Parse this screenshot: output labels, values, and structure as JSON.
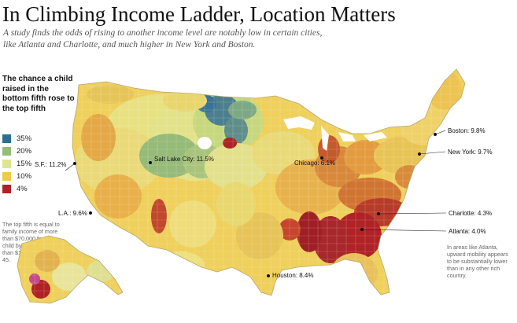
{
  "title": "In Climbing Income Ladder, Location Matters",
  "subtitle": "A study finds the odds of rising to another income level are notably low in certain cities, like Atlanta and Charlotte, and much higher in New York and Boston.",
  "legend": {
    "title": "The chance a child raised in the bottom fifth rose to the top fifth",
    "items": [
      {
        "label": "35%",
        "color": "#2f6e93"
      },
      {
        "label": "20%",
        "color": "#97bd76"
      },
      {
        "label": "15%",
        "color": "#dfe690"
      },
      {
        "label": "10%",
        "color": "#f1c94a"
      },
      {
        "label": "4%",
        "color": "#b02226"
      }
    ]
  },
  "footnote": "The top fifth is equal to family income of more than $70,000 for the child by age 30, or more than $100,000 by age 45.",
  "side_note": "In areas like Atlanta, upward mobility appears to be substantially lower than in any other rich country.",
  "cities": [
    {
      "label": "S.F.: 11.2%"
    },
    {
      "label": "L.A.: 9.6%"
    },
    {
      "label": "Salt Lake City: 11.5%"
    },
    {
      "label": "Chicago: 6.1%"
    },
    {
      "label": "Houston: 8.4%"
    },
    {
      "label": "Boston: 9.8%"
    },
    {
      "label": "New York: 9.7%"
    },
    {
      "label": "Charlotte: 4.3%"
    },
    {
      "label": "Atlanta: 4.0%"
    }
  ]
}
